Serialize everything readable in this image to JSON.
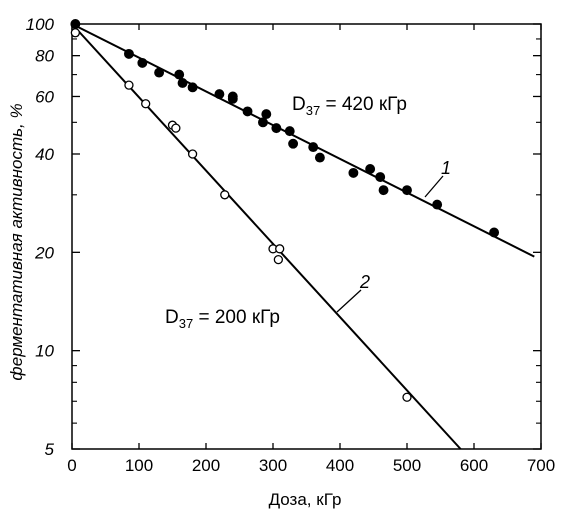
{
  "chart_data": {
    "type": "scatter",
    "title": "",
    "xlabel": "Доза, кГр",
    "ylabel": "ферментативная активность, %",
    "xlim": [
      0,
      700
    ],
    "ylim": [
      5,
      100
    ],
    "yscale": "log",
    "x_ticks": [
      "0",
      "100",
      "200",
      "300",
      "400",
      "500",
      "600",
      "700"
    ],
    "y_ticks": [
      "5",
      "10",
      "20",
      "40",
      "60",
      "80",
      "100"
    ],
    "grid": false,
    "series": [
      {
        "name": "1",
        "marker": "filled-circle",
        "annotation": "D37 = 420 кГр",
        "annotation_main": "D",
        "annotation_sub": "37",
        "annotation_rest": " = 420 кГр",
        "points": [
          [
            5,
            100
          ],
          [
            85,
            81
          ],
          [
            105,
            76
          ],
          [
            130,
            71
          ],
          [
            160,
            70
          ],
          [
            165,
            66
          ],
          [
            180,
            64
          ],
          [
            220,
            61
          ],
          [
            240,
            59
          ],
          [
            240,
            60
          ],
          [
            262,
            54
          ],
          [
            285,
            50
          ],
          [
            290,
            53
          ],
          [
            305,
            48
          ],
          [
            325,
            47
          ],
          [
            330,
            43
          ],
          [
            360,
            42
          ],
          [
            370,
            39
          ],
          [
            420,
            35
          ],
          [
            445,
            36
          ],
          [
            460,
            34
          ],
          [
            465,
            31
          ],
          [
            500,
            31
          ],
          [
            545,
            28
          ],
          [
            630,
            23
          ]
        ],
        "fit_line": [
          [
            0,
            100
          ],
          [
            690,
            19.4
          ]
        ]
      },
      {
        "name": "2",
        "marker": "open-circle",
        "annotation": "D37 = 200 кГр",
        "annotation_main": "D",
        "annotation_sub": "37",
        "annotation_rest": " = 200 кГр",
        "points": [
          [
            5,
            94
          ],
          [
            85,
            65
          ],
          [
            110,
            57
          ],
          [
            150,
            49
          ],
          [
            155,
            48
          ],
          [
            180,
            40
          ],
          [
            228,
            30
          ],
          [
            300,
            20.5
          ],
          [
            308,
            19
          ],
          [
            310,
            20.5
          ],
          [
            500,
            7.2
          ]
        ],
        "fit_line": [
          [
            0,
            100
          ],
          [
            580,
            5
          ]
        ]
      }
    ]
  }
}
